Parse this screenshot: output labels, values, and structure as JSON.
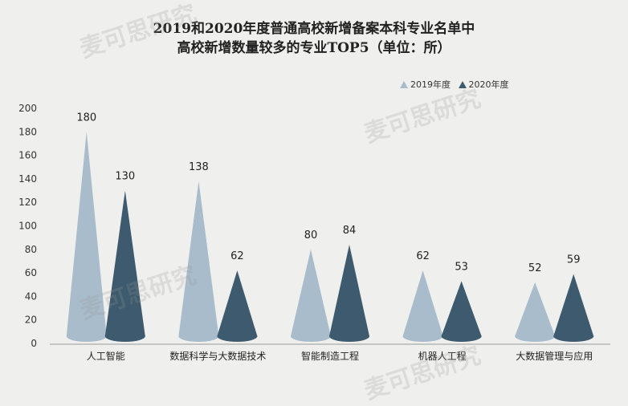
{
  "chart_data": {
    "type": "bar",
    "title_line1": "2019和2020年度普通高校新增备案本科专业名单中",
    "title_line2": "高校新增数量较多的专业TOP5（单位：所）",
    "categories": [
      "人工智能",
      "数据科学与大数据技术",
      "智能制造工程",
      "机器人工程",
      "大数据管理与应用"
    ],
    "series": [
      {
        "name": "2019年度",
        "values": [
          180,
          138,
          80,
          62,
          52
        ],
        "color": "#a8bccb"
      },
      {
        "name": "2020年度",
        "values": [
          130,
          62,
          84,
          53,
          59
        ],
        "color": "#3d5a6e"
      }
    ],
    "ylim": [
      0,
      200
    ],
    "yticks": [
      0,
      20,
      40,
      60,
      80,
      100,
      120,
      140,
      160,
      180,
      200
    ],
    "grid": false,
    "legend_position": "top-right",
    "watermark": "麦可思研究"
  }
}
